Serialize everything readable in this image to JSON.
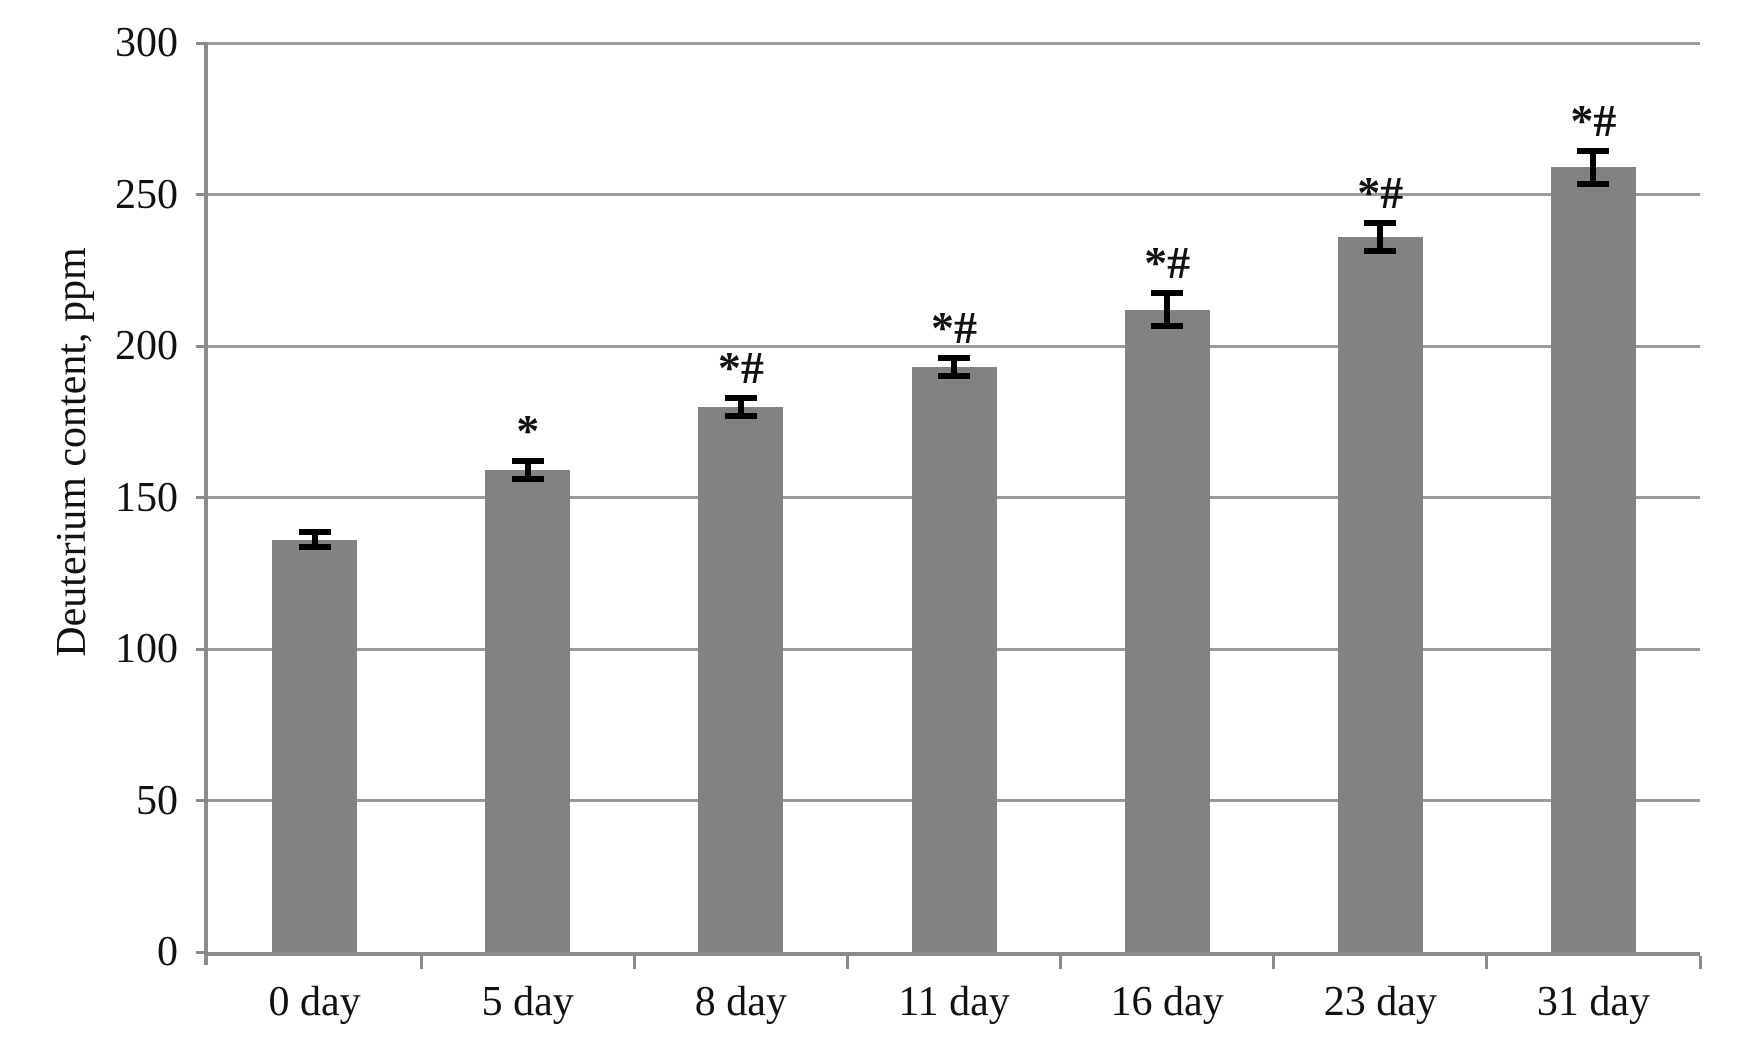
{
  "chart_data": {
    "type": "bar",
    "title": "",
    "xlabel": "",
    "ylabel": "Deuterium content, ppm",
    "categories": [
      "0 day",
      "5 day",
      "8 day",
      "11 day",
      "16 day",
      "23 day",
      "31 day"
    ],
    "values": [
      136,
      159,
      180,
      193,
      212,
      236,
      259
    ],
    "error_bars": [
      2.5,
      3,
      3,
      3,
      5.5,
      4.5,
      5.5
    ],
    "annotations": [
      "",
      "*",
      "*#",
      "*#",
      "*#",
      "*#",
      "*#"
    ],
    "ylim": [
      0,
      300
    ],
    "ytick_labels": [
      "0",
      "50",
      "100",
      "150",
      "200",
      "250",
      "300"
    ],
    "grid": "horizontal gridlines on",
    "legend_position": "none",
    "colors": {
      "bar_fill": "#828282",
      "gridline": "#9a9a9a",
      "axis": "#8a8a8a",
      "error_bar": "#000000",
      "text": "#111111",
      "background": "#ffffff"
    }
  }
}
